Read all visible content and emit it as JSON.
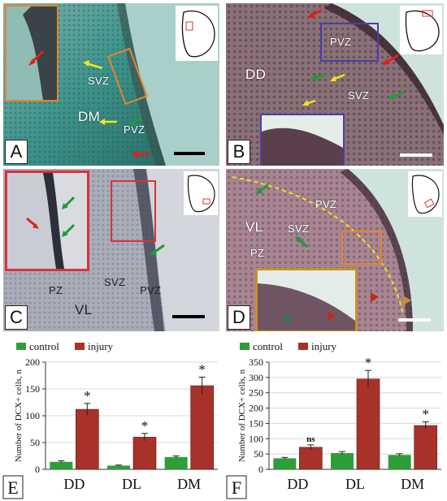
{
  "panels": {
    "A": {
      "letter": "A",
      "labels": {
        "svz": "SVZ",
        "dm": "DM",
        "pvz": "PVZ"
      }
    },
    "B": {
      "letter": "B",
      "labels": {
        "pvz": "PVZ",
        "dd": "DD",
        "svz": "SVZ"
      }
    },
    "C": {
      "letter": "C",
      "labels": {
        "pz": "PZ",
        "svz": "SVZ",
        "pvz": "PVZ",
        "vl": "VL"
      }
    },
    "D": {
      "letter": "D",
      "labels": {
        "pvz": "PVZ",
        "vl": "VL",
        "svz": "SVZ",
        "pz": "PZ"
      }
    },
    "E": {
      "letter": "E"
    },
    "F": {
      "letter": "F"
    }
  },
  "colors": {
    "control": "#2e9e3a",
    "injury": "#a8322a",
    "arrow_red": "#e0201a",
    "arrow_green": "#1f9a3a",
    "arrow_yellow": "#f2e51a"
  },
  "chart_data": [
    {
      "type": "bar",
      "categories": [
        "DD",
        "DL",
        "DM"
      ],
      "series": [
        {
          "name": "control",
          "values": [
            14,
            7,
            23
          ],
          "errors": [
            2,
            1,
            2
          ]
        },
        {
          "name": "injury",
          "values": [
            112,
            60,
            156
          ],
          "errors": [
            11,
            7,
            16
          ]
        }
      ],
      "annotations": [
        "*",
        "*",
        "*"
      ],
      "ylabel": "Number of DCX+ cells, n",
      "ylim": [
        0,
        200
      ],
      "yticks": [
        0,
        50,
        100,
        150,
        200
      ],
      "legend": "top-left"
    },
    {
      "type": "bar",
      "categories": [
        "DD",
        "DL",
        "DM"
      ],
      "series": [
        {
          "name": "control",
          "values": [
            36,
            53,
            47
          ],
          "errors": [
            3,
            5,
            4
          ]
        },
        {
          "name": "injury",
          "values": [
            72,
            295,
            143
          ],
          "errors": [
            8,
            28,
            12
          ]
        }
      ],
      "annotations": [
        "ns",
        "*",
        "*"
      ],
      "ylabel": "Number of DCX+ cells, n",
      "ylim": [
        0,
        350
      ],
      "yticks": [
        0,
        50,
        100,
        150,
        200,
        250,
        300,
        350
      ],
      "legend": "top-left"
    }
  ]
}
